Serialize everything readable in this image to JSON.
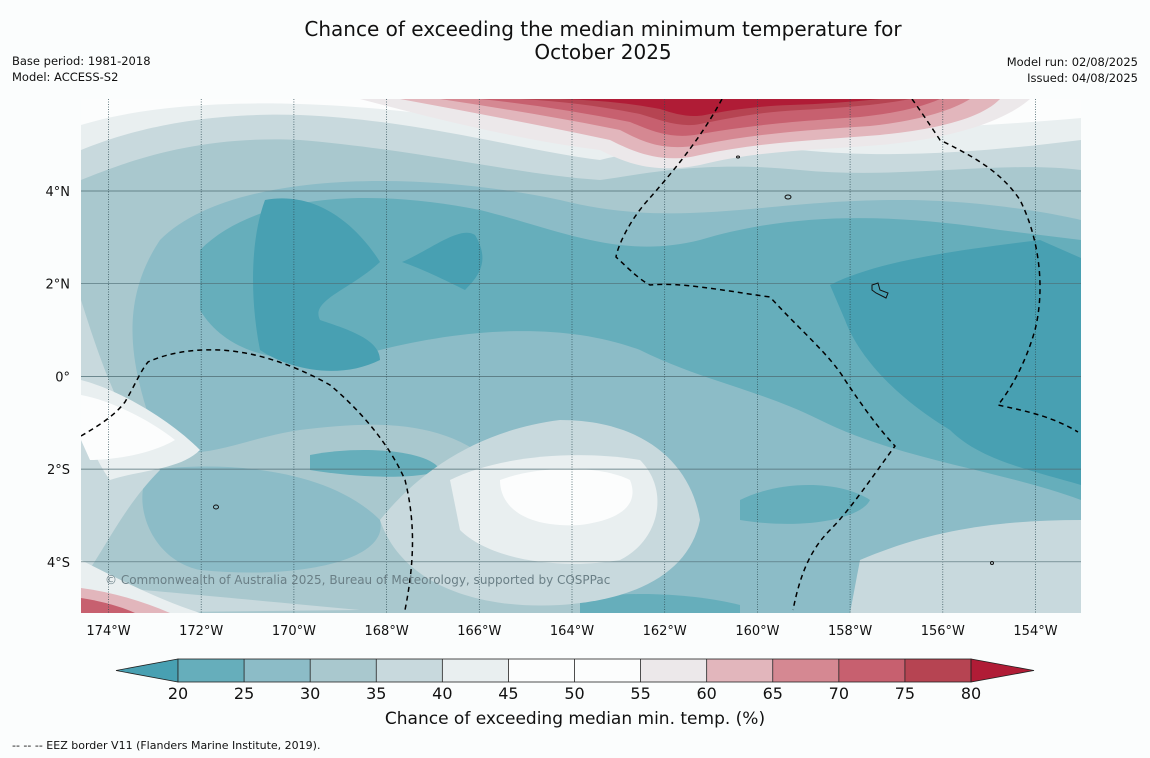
{
  "header": {
    "title_line1": "Chance of exceeding the median minimum temperature for",
    "title_line2": "October 2025",
    "base_period": "Base period: 1981-2018",
    "model": "Model: ACCESS-S2",
    "model_run": "Model run: 02/08/2025",
    "issued": "Issued: 04/08/2025"
  },
  "map": {
    "lon_labels": [
      "174°W",
      "172°W",
      "170°W",
      "168°W",
      "166°W",
      "164°W",
      "162°W",
      "160°W",
      "158°W",
      "156°W",
      "154°W"
    ],
    "lat_labels": [
      "4°N",
      "2°N",
      "0°",
      "2°S",
      "4°S"
    ],
    "copyright": "© Commonwealth of Australia 2025, Bureau of Meteorology, supported by COSPPac"
  },
  "colorbar": {
    "ticks": [
      "20",
      "25",
      "30",
      "35",
      "40",
      "45",
      "50",
      "55",
      "60",
      "65",
      "70",
      "75",
      "80"
    ],
    "colors": [
      "#48a0b2",
      "#66aebb",
      "#8cbcc7",
      "#a9c8ce",
      "#c8d9dd",
      "#e9eff0",
      "#fcfdfd",
      "#fcfdfd",
      "#ece8ea",
      "#e2b6bc",
      "#d58892",
      "#c7606f",
      "#b64452",
      "#b01c36"
    ],
    "title": "Chance of exceeding median min. temp. (%)"
  },
  "footnote": "--  --  -- EEZ border V11 (Flanders Marine Institute, 2019)."
}
